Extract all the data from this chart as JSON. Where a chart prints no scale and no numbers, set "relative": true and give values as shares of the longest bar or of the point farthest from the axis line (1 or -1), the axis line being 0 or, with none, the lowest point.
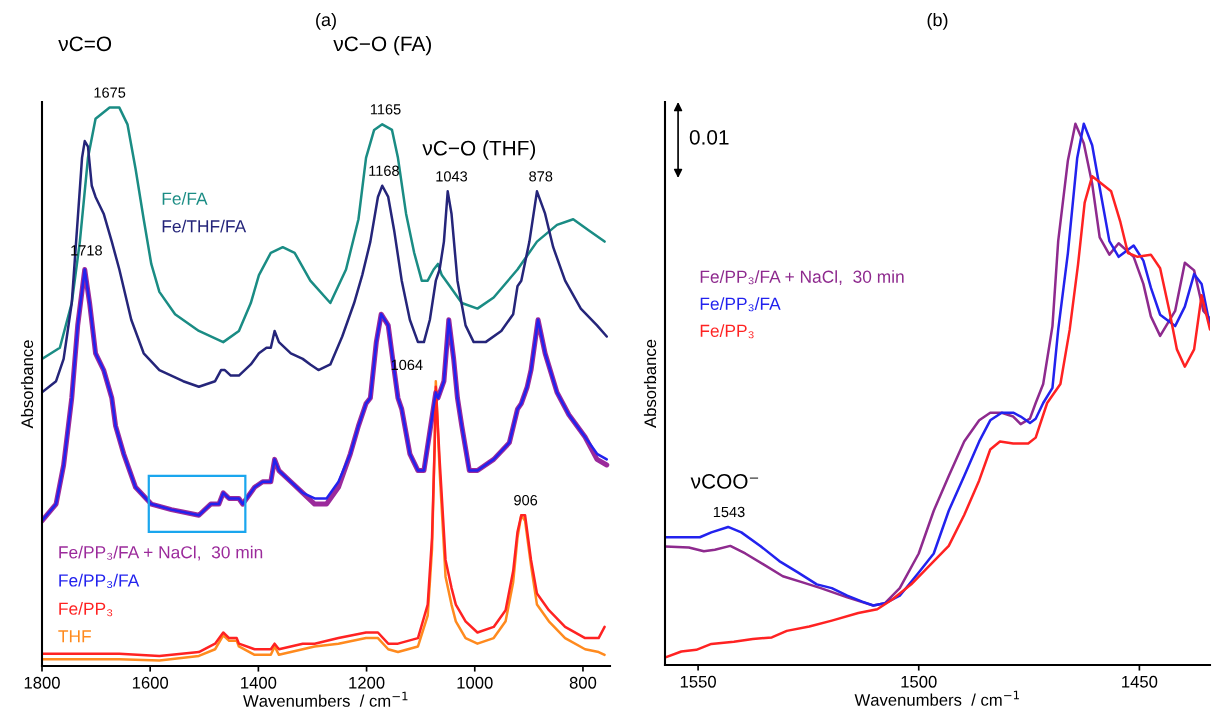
{
  "chart_data": [
    {
      "type": "line",
      "title": "(a)",
      "xlabel": "Wavenumbers  / cm$^{−1}$",
      "ylabel": "Absorbance",
      "relative": true,
      "xlim": [
        1800,
        750
      ],
      "xticks": [
        1800,
        1600,
        1400,
        1200,
        1000,
        800
      ],
      "annotations": [
        "νC=O",
        "νC−O (FA)",
        "νC−O (THF)",
        {
          "text": "1675",
          "x": 1675,
          "y": 1.0
        },
        {
          "text": "1165",
          "x": 1165,
          "y": 0.97
        },
        {
          "text": "1168",
          "x": 1168,
          "y": 0.86
        },
        {
          "text": "1043",
          "x": 1043,
          "y": 0.85
        },
        {
          "text": "878",
          "x": 878,
          "y": 0.85
        },
        {
          "text": "1718",
          "x": 1718,
          "y": 0.71
        },
        {
          "text": "1064",
          "x": 1064,
          "y": 0.5
        },
        {
          "text": "906",
          "x": 906,
          "y": 0.27
        }
      ],
      "series": [
        {
          "name": "Fe/FA",
          "color": "#1a8c84",
          "x": [
            1800,
            1767,
            1745,
            1730,
            1715,
            1701,
            1675,
            1657,
            1642,
            1627,
            1612,
            1598,
            1583,
            1554,
            1510,
            1465,
            1436,
            1414,
            1399,
            1377,
            1355,
            1333,
            1304,
            1267,
            1238,
            1215,
            1201,
            1186,
            1171,
            1153,
            1142,
            1127,
            1112,
            1098,
            1087,
            1076,
            1068,
            1061,
            1046,
            1024,
            995,
            965,
            921,
            885,
            848,
            818,
            789,
            760
          ],
          "values": [
            0.55,
            0.57,
            0.65,
            0.76,
            0.91,
            0.98,
            1.0,
            1.0,
            0.97,
            0.89,
            0.8,
            0.72,
            0.67,
            0.63,
            0.6,
            0.58,
            0.6,
            0.65,
            0.7,
            0.74,
            0.75,
            0.74,
            0.69,
            0.65,
            0.71,
            0.8,
            0.91,
            0.96,
            0.97,
            0.96,
            0.91,
            0.81,
            0.74,
            0.69,
            0.69,
            0.71,
            0.72,
            0.7,
            0.68,
            0.65,
            0.64,
            0.66,
            0.71,
            0.76,
            0.79,
            0.8,
            0.78,
            0.76
          ]
        },
        {
          "name": "Fe/THF/FA",
          "color": "#25257a",
          "x": [
            1800,
            1774,
            1760,
            1745,
            1734,
            1726,
            1721,
            1715,
            1708,
            1701,
            1686,
            1671,
            1657,
            1635,
            1612,
            1583,
            1539,
            1510,
            1480,
            1469,
            1462,
            1451,
            1436,
            1414,
            1399,
            1385,
            1377,
            1370,
            1362,
            1340,
            1318,
            1304,
            1289,
            1267,
            1245,
            1223,
            1208,
            1193,
            1179,
            1171,
            1160,
            1149,
            1135,
            1120,
            1105,
            1094,
            1083,
            1072,
            1065,
            1057,
            1050,
            1043,
            1032,
            1017,
            1002,
            980,
            951,
            929,
            921,
            914,
            899,
            885,
            870,
            855,
            833,
            804,
            774,
            756
          ],
          "values": [
            0.49,
            0.51,
            0.55,
            0.65,
            0.8,
            0.91,
            0.94,
            0.93,
            0.86,
            0.84,
            0.81,
            0.76,
            0.71,
            0.62,
            0.56,
            0.53,
            0.51,
            0.5,
            0.51,
            0.53,
            0.53,
            0.52,
            0.52,
            0.54,
            0.56,
            0.57,
            0.57,
            0.6,
            0.58,
            0.56,
            0.55,
            0.54,
            0.53,
            0.54,
            0.59,
            0.65,
            0.7,
            0.76,
            0.84,
            0.86,
            0.84,
            0.78,
            0.69,
            0.62,
            0.58,
            0.58,
            0.62,
            0.69,
            0.71,
            0.76,
            0.85,
            0.81,
            0.69,
            0.61,
            0.58,
            0.58,
            0.6,
            0.63,
            0.68,
            0.69,
            0.76,
            0.85,
            0.81,
            0.75,
            0.69,
            0.64,
            0.61,
            0.59
          ]
        },
        {
          "name": "Fe/PP₃/FA + NaCl,  30 min",
          "color": "#9b2a9b",
          "x": [
            1800,
            1774,
            1760,
            1745,
            1734,
            1721,
            1712,
            1701,
            1686,
            1671,
            1664,
            1649,
            1627,
            1598,
            1561,
            1510,
            1488,
            1473,
            1465,
            1454,
            1436,
            1429,
            1407,
            1392,
            1377,
            1370,
            1362,
            1340,
            1318,
            1296,
            1274,
            1252,
            1230,
            1215,
            1201,
            1193,
            1182,
            1173,
            1160,
            1149,
            1142,
            1135,
            1120,
            1105,
            1094,
            1083,
            1072,
            1068,
            1057,
            1048,
            1039,
            1032,
            1024,
            1010,
            995,
            965,
            936,
            921,
            914,
            903,
            896,
            883,
            870,
            848,
            826,
            796,
            774,
            756
          ],
          "values": [
            0.26,
            0.29,
            0.36,
            0.48,
            0.61,
            0.71,
            0.65,
            0.56,
            0.53,
            0.48,
            0.43,
            0.38,
            0.32,
            0.29,
            0.28,
            0.27,
            0.29,
            0.29,
            0.31,
            0.3,
            0.3,
            0.29,
            0.32,
            0.33,
            0.33,
            0.37,
            0.35,
            0.33,
            0.31,
            0.29,
            0.29,
            0.32,
            0.38,
            0.43,
            0.47,
            0.48,
            0.58,
            0.63,
            0.61,
            0.53,
            0.48,
            0.46,
            0.38,
            0.35,
            0.35,
            0.42,
            0.49,
            0.48,
            0.51,
            0.62,
            0.55,
            0.48,
            0.43,
            0.35,
            0.35,
            0.37,
            0.4,
            0.46,
            0.47,
            0.5,
            0.53,
            0.62,
            0.56,
            0.49,
            0.45,
            0.41,
            0.37,
            0.36
          ]
        },
        {
          "name": "Fe/PP₃/FA",
          "color": "#2222ee",
          "x": [
            1800,
            1774,
            1760,
            1745,
            1734,
            1721,
            1712,
            1701,
            1686,
            1671,
            1664,
            1649,
            1627,
            1598,
            1561,
            1510,
            1488,
            1473,
            1465,
            1454,
            1436,
            1429,
            1407,
            1392,
            1377,
            1370,
            1362,
            1340,
            1318,
            1296,
            1274,
            1252,
            1230,
            1215,
            1201,
            1193,
            1182,
            1173,
            1160,
            1149,
            1142,
            1135,
            1120,
            1105,
            1094,
            1083,
            1072,
            1068,
            1057,
            1048,
            1039,
            1032,
            1024,
            1010,
            995,
            965,
            936,
            921,
            914,
            903,
            896,
            883,
            870,
            848,
            826,
            796,
            774,
            756
          ],
          "values": [
            0.26,
            0.29,
            0.36,
            0.48,
            0.61,
            0.71,
            0.65,
            0.56,
            0.53,
            0.48,
            0.43,
            0.38,
            0.32,
            0.29,
            0.28,
            0.27,
            0.29,
            0.29,
            0.31,
            0.3,
            0.3,
            0.29,
            0.32,
            0.33,
            0.33,
            0.37,
            0.35,
            0.33,
            0.31,
            0.3,
            0.3,
            0.33,
            0.38,
            0.43,
            0.47,
            0.48,
            0.58,
            0.63,
            0.61,
            0.53,
            0.48,
            0.46,
            0.38,
            0.35,
            0.35,
            0.42,
            0.49,
            0.48,
            0.51,
            0.62,
            0.55,
            0.48,
            0.43,
            0.35,
            0.35,
            0.37,
            0.4,
            0.46,
            0.47,
            0.5,
            0.53,
            0.62,
            0.56,
            0.49,
            0.45,
            0.41,
            0.38,
            0.37
          ]
        },
        {
          "name": "Fe/PP₃",
          "color": "#ff2222",
          "x": [
            1800,
            1657,
            1583,
            1510,
            1480,
            1465,
            1454,
            1440,
            1436,
            1407,
            1377,
            1370,
            1362,
            1318,
            1296,
            1252,
            1201,
            1179,
            1160,
            1142,
            1105,
            1087,
            1079,
            1074,
            1072,
            1065,
            1054,
            1043,
            1035,
            1017,
            995,
            965,
            943,
            929,
            921,
            914,
            907,
            896,
            885,
            863,
            833,
            796,
            771,
            760
          ],
          "values": [
            0.022,
            0.022,
            0.018,
            0.025,
            0.04,
            0.06,
            0.05,
            0.05,
            0.04,
            0.03,
            0.03,
            0.04,
            0.03,
            0.04,
            0.04,
            0.05,
            0.06,
            0.06,
            0.04,
            0.04,
            0.05,
            0.11,
            0.23,
            0.4,
            0.5,
            0.37,
            0.19,
            0.14,
            0.11,
            0.08,
            0.06,
            0.07,
            0.1,
            0.17,
            0.24,
            0.27,
            0.27,
            0.19,
            0.13,
            0.1,
            0.07,
            0.05,
            0.05,
            0.07
          ]
        },
        {
          "name": "THF",
          "color": "#ff8a1e",
          "x": [
            1800,
            1657,
            1583,
            1510,
            1480,
            1465,
            1454,
            1440,
            1436,
            1407,
            1377,
            1370,
            1362,
            1318,
            1296,
            1252,
            1201,
            1179,
            1160,
            1142,
            1105,
            1087,
            1079,
            1074,
            1072,
            1065,
            1054,
            1043,
            1035,
            1017,
            995,
            965,
            943,
            929,
            921,
            914,
            907,
            896,
            885,
            863,
            833,
            796,
            771,
            760
          ],
          "values": [
            0.012,
            0.012,
            0.01,
            0.018,
            0.03,
            0.055,
            0.045,
            0.045,
            0.035,
            0.02,
            0.02,
            0.035,
            0.02,
            0.03,
            0.035,
            0.04,
            0.05,
            0.05,
            0.03,
            0.025,
            0.035,
            0.09,
            0.21,
            0.4,
            0.51,
            0.35,
            0.16,
            0.11,
            0.08,
            0.05,
            0.04,
            0.05,
            0.08,
            0.15,
            0.23,
            0.27,
            0.26,
            0.18,
            0.11,
            0.08,
            0.05,
            0.03,
            0.025,
            0.02
          ]
        }
      ]
    },
    {
      "type": "line",
      "title": "(b)",
      "xlabel": "Wavenumbers  / cm$^{−1}$",
      "ylabel": "Absorbance",
      "relative": true,
      "xlim": [
        1557.5,
        1434
      ],
      "xticks": [
        1550,
        1500,
        1450
      ],
      "annotations": [
        "0.01",
        "νCOO⁻",
        {
          "text": "1543",
          "x": 1543,
          "y": 0.255
        }
      ],
      "series": [
        {
          "name": "Fe/PP₃/FA + NaCl,  30 min",
          "color": "#8e2a8e",
          "x": [
            1557.4,
            1552.1,
            1548.7,
            1546.2,
            1542.7,
            1539.3,
            1535.0,
            1530.8,
            1526.5,
            1522.2,
            1516.2,
            1510.3,
            1507.7,
            1504.3,
            1500.0,
            1496.6,
            1493.2,
            1489.7,
            1486.3,
            1483.8,
            1481.2,
            1478.6,
            1476.9,
            1474.8,
            1473.5,
            1471.8,
            1469.7,
            1468.4,
            1466.2,
            1464.5,
            1462.6,
            1460.7,
            1459.0,
            1456.8,
            1454.7,
            1451.3,
            1449.1,
            1447.4,
            1445.3,
            1441.9,
            1439.7,
            1437.6,
            1435.5,
            1434
          ],
          "values": [
            0.219,
            0.217,
            0.21,
            0.213,
            0.22,
            0.206,
            0.185,
            0.164,
            0.153,
            0.142,
            0.125,
            0.11,
            0.114,
            0.142,
            0.206,
            0.285,
            0.349,
            0.413,
            0.452,
            0.466,
            0.466,
            0.459,
            0.445,
            0.455,
            0.484,
            0.519,
            0.626,
            0.783,
            0.932,
            1.0,
            0.964,
            0.889,
            0.79,
            0.758,
            0.779,
            0.754,
            0.704,
            0.644,
            0.608,
            0.654,
            0.743,
            0.729,
            0.654,
            0.64
          ]
        },
        {
          "name": "Fe/PP₃/FA",
          "color": "#2222ee",
          "x": [
            1557.4,
            1549.6,
            1547.0,
            1543.2,
            1540.2,
            1535.9,
            1531.6,
            1527.4,
            1523.1,
            1519.7,
            1516.2,
            1512.8,
            1510.3,
            1507.7,
            1504.3,
            1500.0,
            1496.6,
            1493.2,
            1489.7,
            1486.3,
            1483.8,
            1481.2,
            1478.6,
            1476.9,
            1474.8,
            1473.5,
            1471.8,
            1469.7,
            1468.4,
            1466.2,
            1464.1,
            1462.6,
            1460.7,
            1459.0,
            1456.8,
            1454.7,
            1451.3,
            1449.1,
            1447.4,
            1445.3,
            1441.9,
            1439.7,
            1437.6,
            1435.9,
            1434
          ],
          "values": [
            0.236,
            0.236,
            0.245,
            0.255,
            0.245,
            0.22,
            0.192,
            0.171,
            0.149,
            0.142,
            0.128,
            0.117,
            0.11,
            0.114,
            0.128,
            0.171,
            0.206,
            0.285,
            0.349,
            0.413,
            0.452,
            0.466,
            0.466,
            0.459,
            0.447,
            0.455,
            0.484,
            0.512,
            0.619,
            0.761,
            0.936,
            1.0,
            0.96,
            0.882,
            0.783,
            0.754,
            0.775,
            0.747,
            0.697,
            0.647,
            0.626,
            0.662,
            0.722,
            0.704,
            0.626
          ]
        },
        {
          "name": "Fe/PP₃",
          "color": "#ff2222",
          "x": [
            1557.4,
            1553.8,
            1550.4,
            1547.0,
            1541.9,
            1537.6,
            1533.3,
            1529.9,
            1524.8,
            1519.7,
            1513.7,
            1509.4,
            1506.0,
            1501.7,
            1497.4,
            1493.2,
            1489.7,
            1486.3,
            1483.8,
            1481.6,
            1478.6,
            1475.2,
            1473.5,
            1470.9,
            1467.9,
            1465.8,
            1463.9,
            1462.4,
            1460.7,
            1456.4,
            1454.3,
            1452.6,
            1450.4,
            1447.4,
            1445.3,
            1443.2,
            1441.5,
            1439.7,
            1437.6,
            1435.9,
            1434
          ],
          "values": [
            0.014,
            0.025,
            0.028,
            0.039,
            0.043,
            0.048,
            0.051,
            0.063,
            0.071,
            0.082,
            0.096,
            0.103,
            0.121,
            0.149,
            0.185,
            0.22,
            0.277,
            0.341,
            0.398,
            0.413,
            0.409,
            0.409,
            0.42,
            0.484,
            0.519,
            0.619,
            0.74,
            0.854,
            0.903,
            0.875,
            0.818,
            0.761,
            0.754,
            0.758,
            0.733,
            0.654,
            0.583,
            0.551,
            0.583,
            0.683,
            0.62
          ]
        }
      ]
    }
  ]
}
